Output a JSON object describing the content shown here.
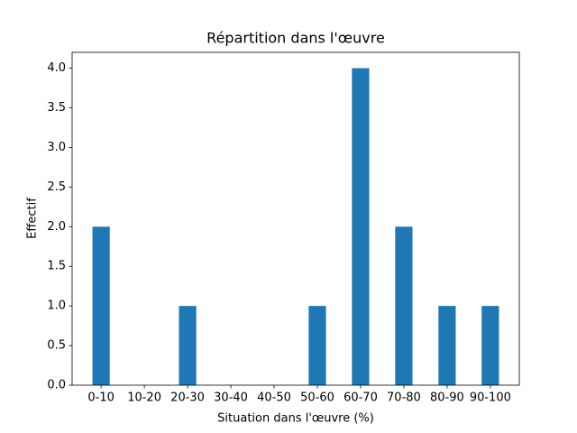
{
  "chart_data": {
    "type": "bar",
    "title": "Répartition dans l'œuvre",
    "x_label": "Situation dans l'œuvre (%)",
    "y_label": "Effectif",
    "categories": [
      "0-10",
      "10-20",
      "20-30",
      "30-40",
      "40-50",
      "50-60",
      "60-70",
      "70-80",
      "80-90",
      "90-100"
    ],
    "values": [
      2,
      0,
      1,
      0,
      0,
      1,
      4,
      2,
      1,
      1
    ],
    "color": "#1f77b4",
    "ylim": [
      0,
      4.2
    ],
    "yticks": [
      {
        "value": 0,
        "label": "0.0"
      },
      {
        "value": 0.5,
        "label": "0.5"
      },
      {
        "value": 1,
        "label": "1.0"
      },
      {
        "value": 1.5,
        "label": "1.5"
      },
      {
        "value": 2,
        "label": "2.0"
      },
      {
        "value": 2.5,
        "label": "2.5"
      },
      {
        "value": 3,
        "label": "3.0"
      },
      {
        "value": 3.5,
        "label": "3.5"
      },
      {
        "value": 4,
        "label": "4.0"
      }
    ],
    "grid": false
  }
}
